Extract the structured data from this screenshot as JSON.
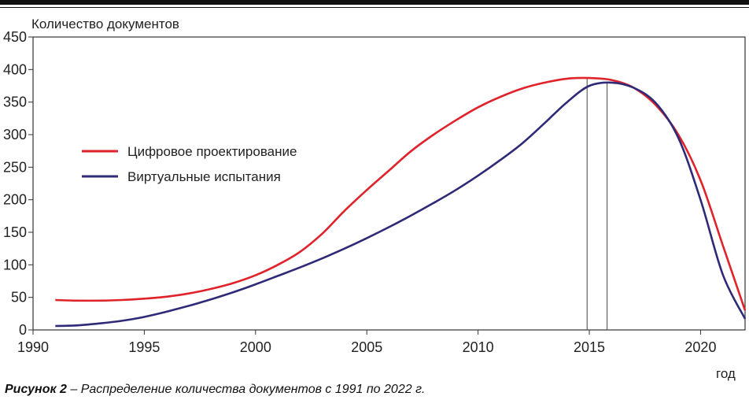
{
  "chart_data": {
    "type": "line",
    "ylabel": "Количество документов",
    "xlabel": "год",
    "xlim": [
      1990,
      2022
    ],
    "ylim": [
      0,
      450
    ],
    "xticks": [
      1990,
      1995,
      2000,
      2005,
      2010,
      2015,
      2020
    ],
    "yticks": [
      0,
      50,
      100,
      150,
      200,
      250,
      300,
      350,
      400,
      450
    ],
    "grid": false,
    "legend_position": "left",
    "series": [
      {
        "name": "Цифровое проектирование",
        "color": "#e0222a",
        "x": [
          1991,
          1992,
          1993,
          1994,
          1995,
          1996,
          1997,
          1998,
          1999,
          2000,
          2001,
          2002,
          2003,
          2004,
          2005,
          2006,
          2007,
          2008,
          2009,
          2010,
          2011,
          2012,
          2013,
          2014,
          2015,
          2016,
          2017,
          2018,
          2019,
          2020,
          2021,
          2022
        ],
        "values": [
          46,
          45,
          45,
          46,
          48,
          51,
          56,
          63,
          72,
          84,
          100,
          120,
          148,
          183,
          215,
          245,
          275,
          300,
          322,
          342,
          358,
          371,
          380,
          386,
          387,
          384,
          372,
          345,
          300,
          230,
          130,
          30
        ]
      },
      {
        "name": "Виртуальные испытания",
        "color": "#2e2a78",
        "x": [
          1991,
          1992,
          1993,
          1994,
          1995,
          1996,
          1997,
          1998,
          1999,
          2000,
          2001,
          2002,
          2003,
          2004,
          2005,
          2006,
          2007,
          2008,
          2009,
          2010,
          2011,
          2012,
          2013,
          2014,
          2015,
          2016,
          2017,
          2018,
          2019,
          2020,
          2021,
          2022
        ],
        "values": [
          6,
          7,
          10,
          14,
          20,
          28,
          37,
          47,
          58,
          70,
          83,
          96,
          110,
          125,
          141,
          158,
          176,
          195,
          215,
          237,
          261,
          287,
          318,
          350,
          375,
          380,
          372,
          348,
          295,
          200,
          85,
          17
        ]
      }
    ],
    "vlines": [
      2014.9,
      2015.8
    ]
  },
  "caption": {
    "label": "Рисунок 2",
    "text": " – Распределение количества документов с 1991 по 2022 г."
  }
}
